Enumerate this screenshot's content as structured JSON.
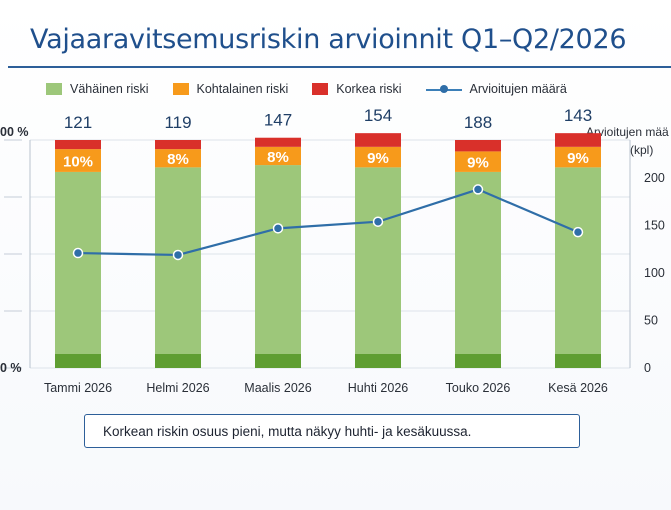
{
  "title": "Vajaaravitsemusriskin arvioinnit Q1–Q2/2026",
  "legend": {
    "low": "Vähäinen riski",
    "medium": "Kohtalainen riski",
    "high": "Korkea riski",
    "count": "Arvioitujen määrä"
  },
  "colors": {
    "low": "#9dc77a",
    "low_base": "#5f9e32",
    "medium": "#f79a1b",
    "high": "#d9302a",
    "line": "#2f6ea8",
    "title": "#1f4f8c"
  },
  "note": "Korkean riskin osuus pieni, mutta näkyy huhti- ja kesäkuussa.",
  "chart_data": {
    "type": "bar",
    "stacked": true,
    "categories": [
      "Tammi 2026",
      "Helmi 2026",
      "Maalis 2026",
      "Huhti 2026",
      "Touko 2026",
      "Kesä 2026"
    ],
    "series": [
      {
        "name": "Vähäinen riski",
        "values": [
          86,
          88,
          89,
          88,
          86,
          88
        ]
      },
      {
        "name": "Kohtalainen riski",
        "values": [
          10,
          8,
          8,
          9,
          9,
          9
        ]
      },
      {
        "name": "Korkea riski",
        "values": [
          4,
          4,
          4,
          6,
          5,
          6
        ]
      }
    ],
    "medium_labels": [
      "10%",
      "8%",
      "8%",
      "9%",
      "9%",
      "9%"
    ],
    "line_series": {
      "name": "Arvioitujen määrä",
      "values": [
        121,
        119,
        147,
        154,
        188,
        143
      ]
    },
    "left_axis": {
      "tick_labels": [
        "00 %",
        "0 %"
      ],
      "ylim": [
        0,
        100
      ]
    },
    "right_axis": {
      "label_line1": "Arvioitujen mää",
      "label_line2": "(kpl)",
      "ticks": [
        0,
        50,
        100,
        150,
        200
      ]
    },
    "grid": true
  }
}
